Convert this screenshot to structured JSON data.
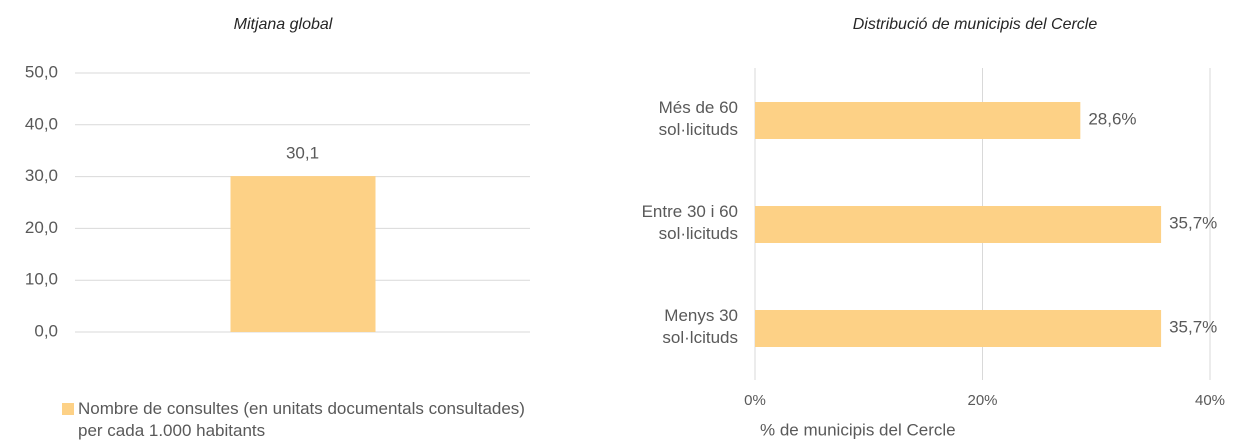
{
  "chart_data": [
    {
      "type": "bar",
      "title": "Mitjana global",
      "categories": [
        null
      ],
      "series": [
        {
          "name": "Nombre de consultes (en unitats documentals consultades) per cada 1.000 habitants",
          "color": "#fdd186",
          "values": [
            30.1
          ],
          "value_labels": [
            "30,1"
          ]
        }
      ],
      "ylim": [
        0,
        50
      ],
      "yticks": [
        {
          "value": 0,
          "label": "0,0"
        },
        {
          "value": 10,
          "label": "10,0"
        },
        {
          "value": 20,
          "label": "20,0"
        },
        {
          "value": 30,
          "label": "30,0"
        },
        {
          "value": 40,
          "label": "40,0"
        },
        {
          "value": 50,
          "label": "50,0"
        }
      ],
      "grid": true,
      "legend": "bottom"
    },
    {
      "type": "hbar",
      "title": "Distribució de municipis del Cercle",
      "categories": [
        "Més de 60\nsol·licituds",
        "Entre 30 i 60\nsol·licituds",
        "Menys 30\nsol·lcituds"
      ],
      "values": [
        28.6,
        35.7,
        35.7
      ],
      "value_labels": [
        "28,6%",
        "35,7%",
        "35,7%"
      ],
      "color": "#fdd186",
      "xlim": [
        0,
        40
      ],
      "xticks": [
        {
          "value": 0,
          "label": "0%"
        },
        {
          "value": 20,
          "label": "20%"
        },
        {
          "value": 40,
          "label": "40%"
        }
      ],
      "xlabel": "% de  municipis del Cercle",
      "grid": true
    }
  ]
}
